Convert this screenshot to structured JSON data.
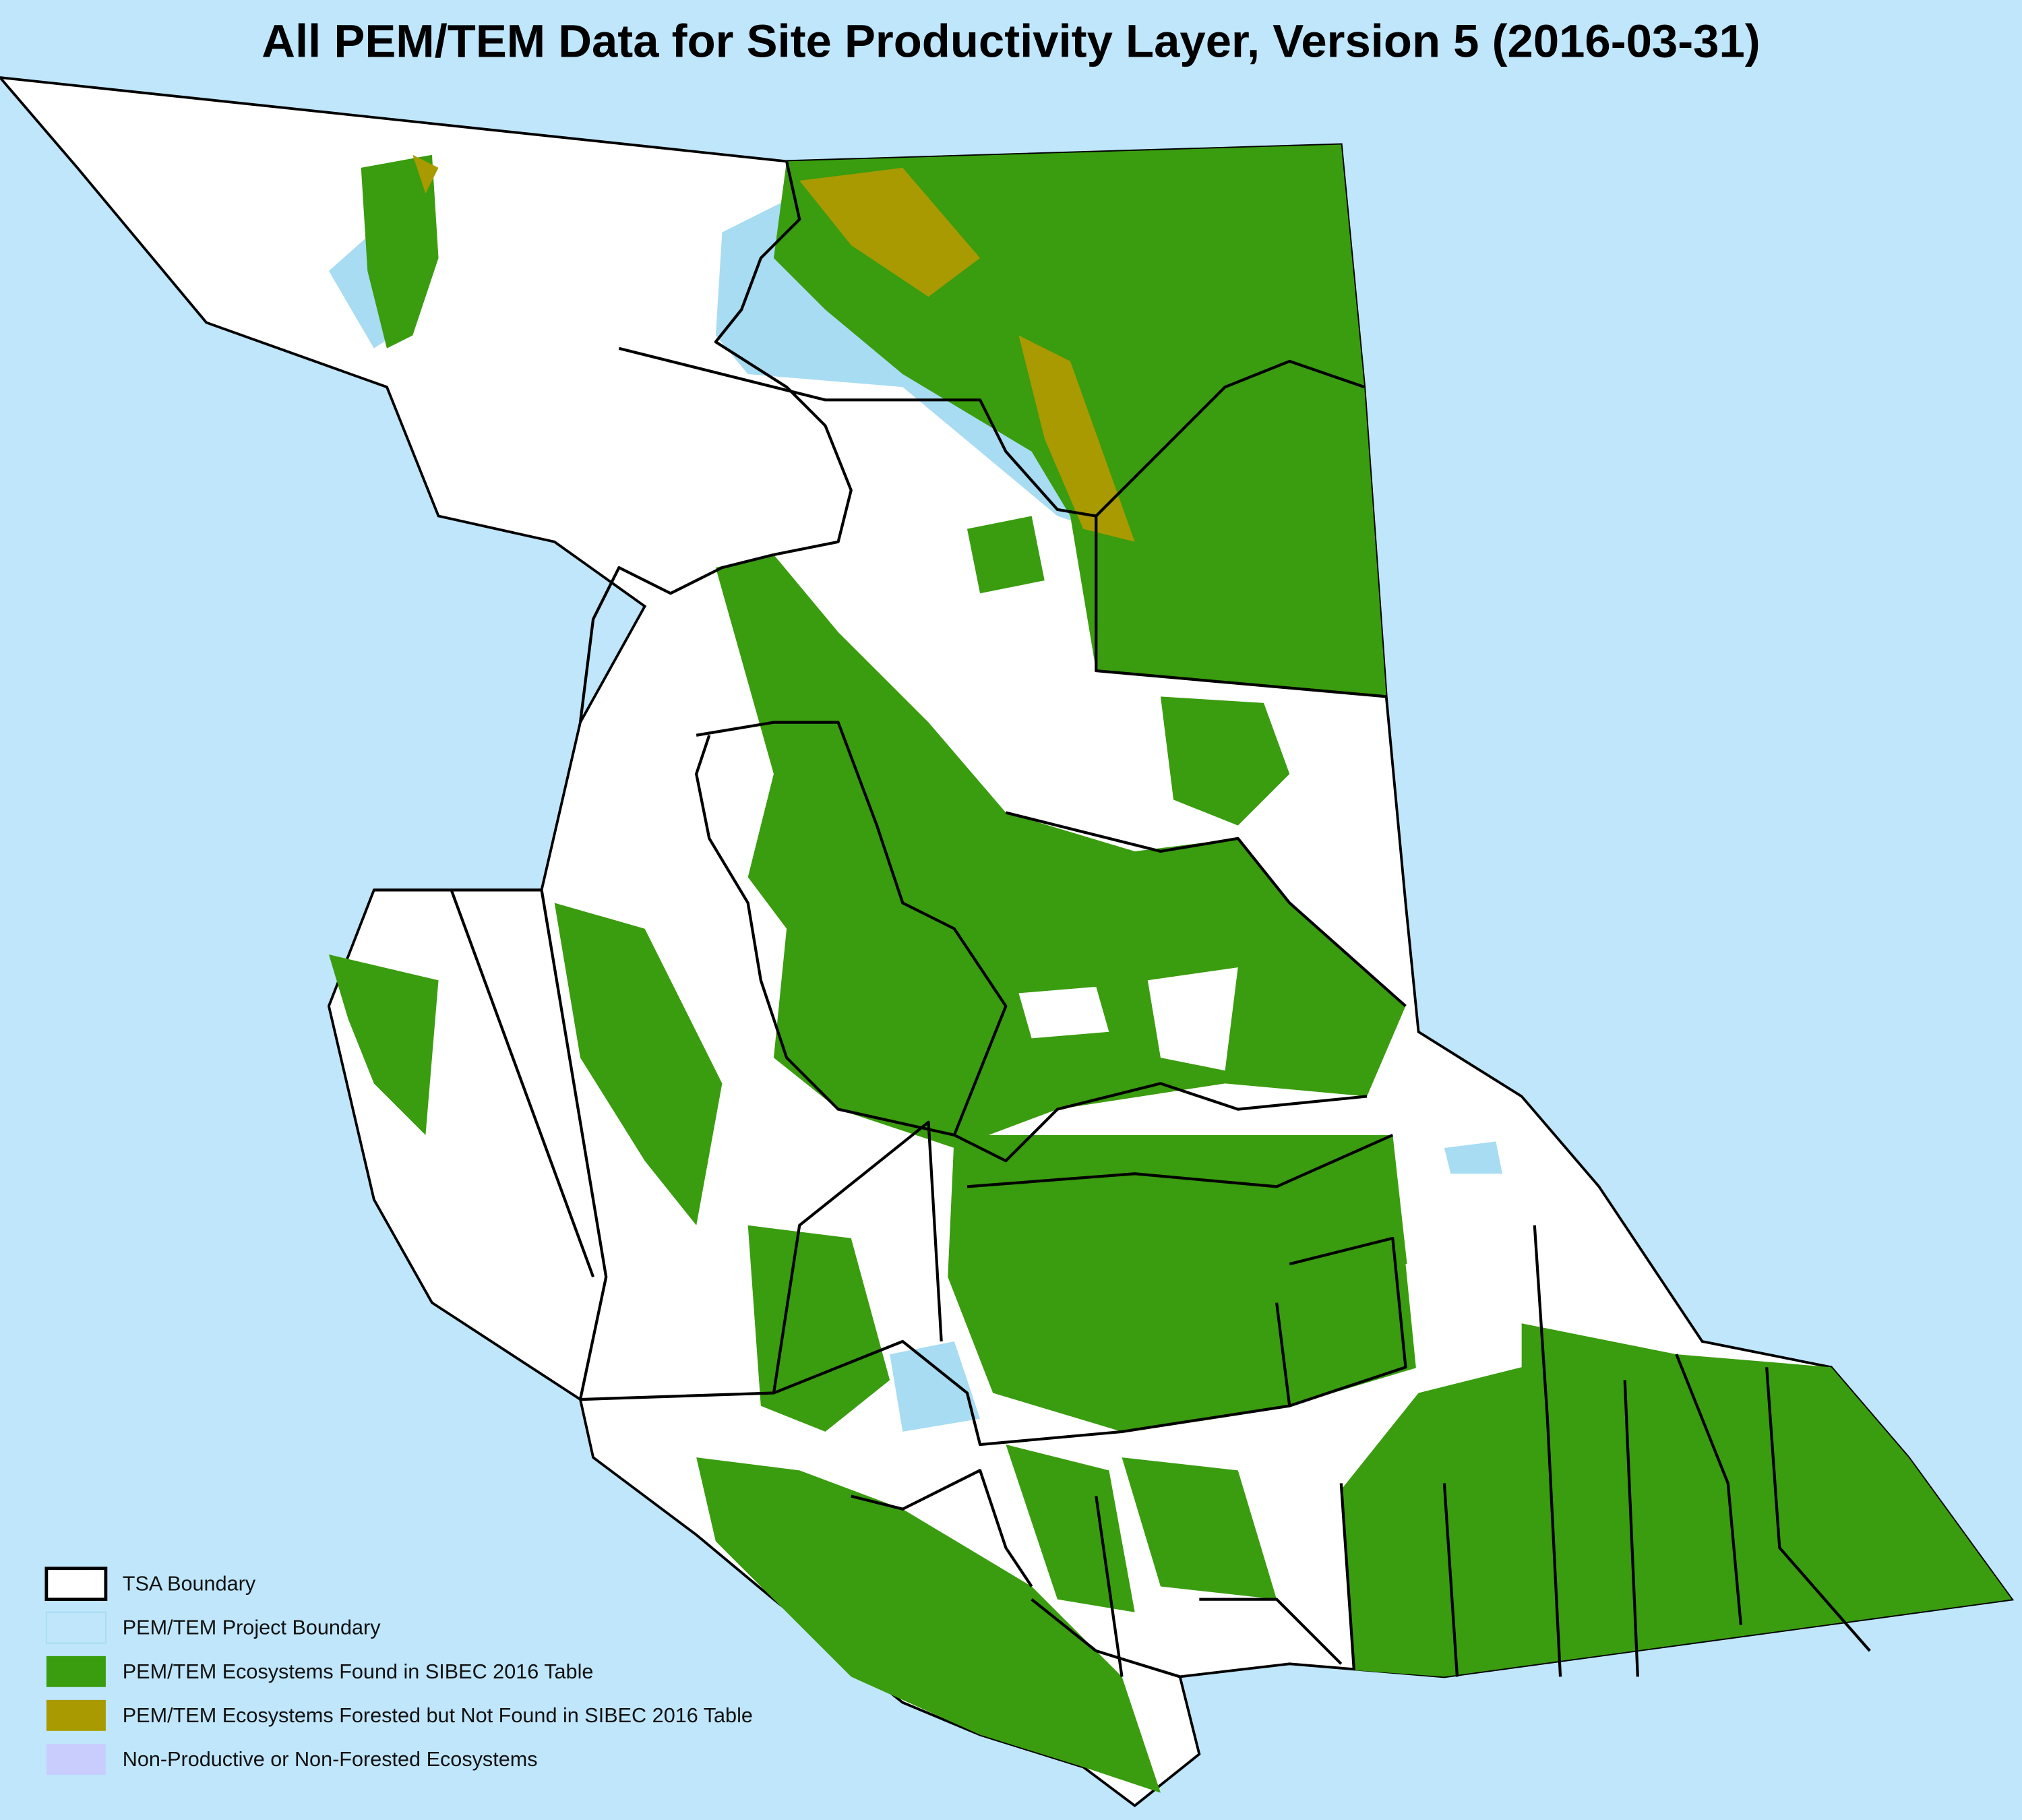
{
  "title": "All PEM/TEM Data for Site Productivity Layer, Version 5 (2016-03-31)",
  "legend": [
    "TSA Boundary",
    "PEM/TEM Project Boundary",
    "PEM/TEM Ecosystems Found in SIBEC 2016 Table",
    "PEM/TEM Ecosystems Forested but Not Found in SIBEC 2016 Table",
    "Non-Productive or Non-Forested Ecosystems"
  ]
}
